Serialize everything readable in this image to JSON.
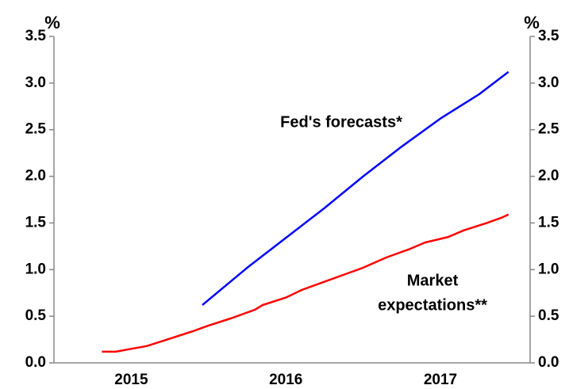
{
  "chart_data": {
    "type": "line",
    "y_unit": "%",
    "y2_unit": "%",
    "xlim": [
      2015,
      2018.08
    ],
    "xticks": [
      {
        "value": 2015.5,
        "label": "2015"
      },
      {
        "value": 2016.5,
        "label": "2016"
      },
      {
        "value": 2017.5,
        "label": "2017"
      }
    ],
    "ylim": [
      0,
      3.5
    ],
    "yticks": [
      {
        "value": 0,
        "label": "0.0"
      },
      0.5,
      {
        "value": 1,
        "label": "1.0"
      },
      1.5,
      {
        "value": 2,
        "label": "2.0"
      },
      2.5,
      {
        "value": 3,
        "label": "3.0"
      },
      3.5
    ],
    "y2lim": [
      0,
      3.5
    ],
    "y2ticks": [
      {
        "value": 0,
        "label": "0.0"
      },
      0.5,
      {
        "value": 1,
        "label": "1.0"
      },
      1.5,
      {
        "value": 2,
        "label": "2.0"
      },
      2.5,
      {
        "value": 3,
        "label": "3.0"
      },
      3.5
    ],
    "series": [
      {
        "color": "#0000ff",
        "x": [
          2015.96,
          2016.25,
          2016.5,
          2016.75,
          2017.0,
          2017.25,
          2017.5,
          2017.75,
          2017.94
        ],
        "values": [
          0.62,
          1.02,
          1.34,
          1.66,
          2.0,
          2.32,
          2.62,
          2.88,
          3.12
        ]
      },
      {
        "color": "#ff0000",
        "x": [
          2015.31,
          2015.4,
          2015.5,
          2015.6,
          2015.75,
          2015.9,
          2016.0,
          2016.15,
          2016.3,
          2016.35,
          2016.5,
          2016.6,
          2016.75,
          2016.9,
          2017.0,
          2017.15,
          2017.3,
          2017.4,
          2017.55,
          2017.65,
          2017.8,
          2017.9,
          2017.94
        ],
        "values": [
          0.12,
          0.12,
          0.15,
          0.18,
          0.26,
          0.34,
          0.4,
          0.48,
          0.57,
          0.62,
          0.7,
          0.78,
          0.87,
          0.96,
          1.02,
          1.13,
          1.22,
          1.29,
          1.35,
          1.42,
          1.5,
          1.56,
          1.59
        ]
      }
    ],
    "annotations": [
      {
        "text": "Fed's forecasts*",
        "color": "#0000ff"
      },
      {
        "text": "Market",
        "color": "#ff0000"
      },
      {
        "text": "expectations**",
        "color": "#ff0000"
      }
    ]
  }
}
